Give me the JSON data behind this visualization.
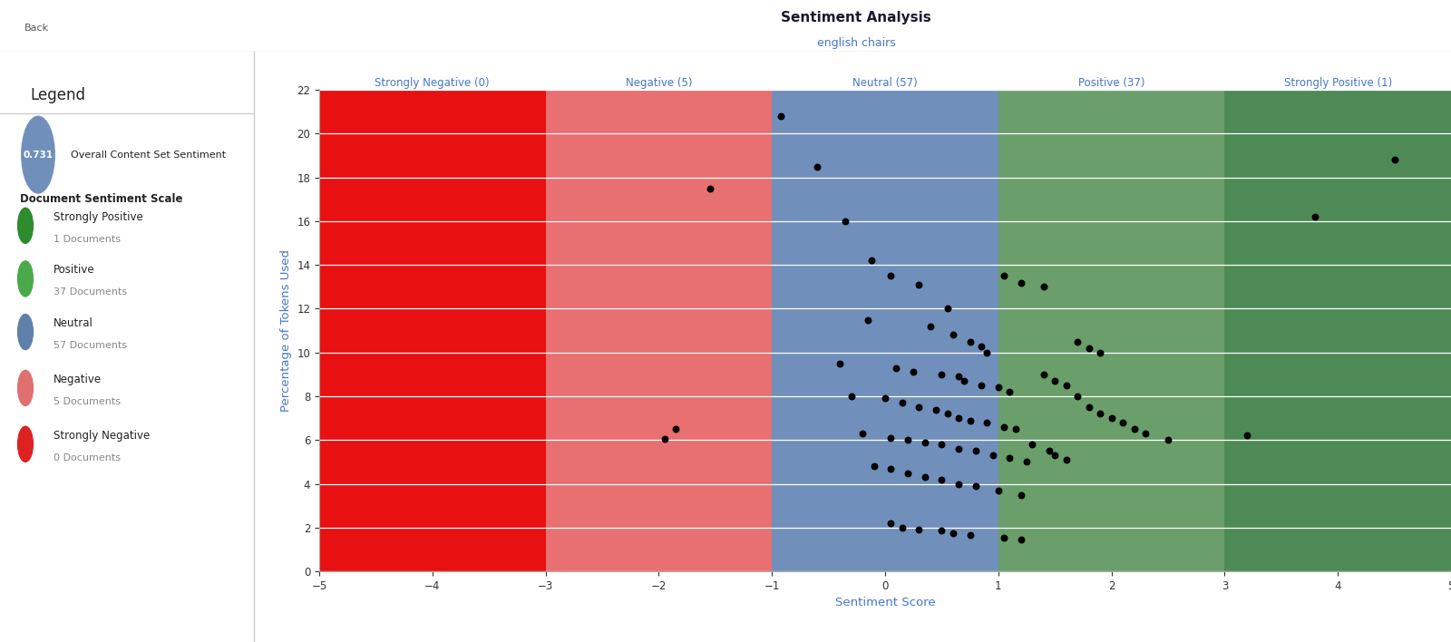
{
  "title": "Sentiment Analysis",
  "subtitle": "english chairs",
  "xlabel": "Sentiment Score",
  "ylabel": "Percentage of Tokens Used",
  "xlim": [
    -5,
    5
  ],
  "ylim": [
    0,
    22
  ],
  "xticks": [
    -5,
    -4,
    -3,
    -2,
    -1,
    0,
    1,
    2,
    3,
    4,
    5
  ],
  "yticks": [
    0,
    2,
    4,
    6,
    8,
    10,
    12,
    14,
    16,
    18,
    20,
    22
  ],
  "regions": [
    {
      "xmin": -5,
      "xmax": -3,
      "color": "#e81010",
      "label": "Strongly Negative (0)"
    },
    {
      "xmin": -3,
      "xmax": -1,
      "color": "#e87070",
      "label": "Negative (5)"
    },
    {
      "xmin": -1,
      "xmax": 1,
      "color": "#7090bb",
      "label": "Neutral (57)"
    },
    {
      "xmin": 1,
      "xmax": 3,
      "color": "#6a9e6a",
      "label": "Positive (37)"
    },
    {
      "xmin": 3,
      "xmax": 5,
      "color": "#4e8a55",
      "label": "Strongly Positive (1)"
    }
  ],
  "dots": [
    [
      -1.55,
      17.5
    ],
    [
      -1.85,
      6.5
    ],
    [
      -1.95,
      6.05
    ],
    [
      -0.92,
      20.8
    ],
    [
      -0.6,
      18.5
    ],
    [
      -0.35,
      16.0
    ],
    [
      -0.12,
      14.2
    ],
    [
      0.05,
      13.5
    ],
    [
      0.3,
      13.1
    ],
    [
      0.55,
      12.0
    ],
    [
      -0.15,
      11.5
    ],
    [
      0.4,
      11.2
    ],
    [
      0.6,
      10.8
    ],
    [
      0.75,
      10.5
    ],
    [
      0.85,
      10.3
    ],
    [
      0.9,
      10.0
    ],
    [
      -0.4,
      9.5
    ],
    [
      0.1,
      9.3
    ],
    [
      0.25,
      9.1
    ],
    [
      0.5,
      9.0
    ],
    [
      0.65,
      8.9
    ],
    [
      0.7,
      8.7
    ],
    [
      0.85,
      8.5
    ],
    [
      1.0,
      8.4
    ],
    [
      1.1,
      8.2
    ],
    [
      -0.3,
      8.0
    ],
    [
      0.0,
      7.9
    ],
    [
      0.15,
      7.7
    ],
    [
      0.3,
      7.5
    ],
    [
      0.45,
      7.4
    ],
    [
      0.55,
      7.2
    ],
    [
      0.65,
      7.0
    ],
    [
      0.75,
      6.9
    ],
    [
      0.9,
      6.8
    ],
    [
      1.05,
      6.6
    ],
    [
      1.15,
      6.5
    ],
    [
      -0.2,
      6.3
    ],
    [
      0.05,
      6.1
    ],
    [
      0.2,
      6.0
    ],
    [
      0.35,
      5.9
    ],
    [
      0.5,
      5.8
    ],
    [
      0.65,
      5.6
    ],
    [
      0.8,
      5.5
    ],
    [
      0.95,
      5.3
    ],
    [
      1.1,
      5.2
    ],
    [
      1.25,
      5.0
    ],
    [
      -0.1,
      4.8
    ],
    [
      0.05,
      4.7
    ],
    [
      0.2,
      4.5
    ],
    [
      0.35,
      4.3
    ],
    [
      0.5,
      4.2
    ],
    [
      0.65,
      4.0
    ],
    [
      0.8,
      3.9
    ],
    [
      1.0,
      3.7
    ],
    [
      1.2,
      3.5
    ],
    [
      0.05,
      2.2
    ],
    [
      0.15,
      2.0
    ],
    [
      0.3,
      1.9
    ],
    [
      0.5,
      1.85
    ],
    [
      0.6,
      1.75
    ],
    [
      0.75,
      1.65
    ],
    [
      1.05,
      1.55
    ],
    [
      1.2,
      1.45
    ],
    [
      1.3,
      5.8
    ],
    [
      1.45,
      5.5
    ],
    [
      1.5,
      5.3
    ],
    [
      1.6,
      5.1
    ],
    [
      1.7,
      8.0
    ],
    [
      1.8,
      7.5
    ],
    [
      1.9,
      7.2
    ],
    [
      2.0,
      7.0
    ],
    [
      2.1,
      6.8
    ],
    [
      2.2,
      6.5
    ],
    [
      2.3,
      6.3
    ],
    [
      2.5,
      6.0
    ],
    [
      1.4,
      9.0
    ],
    [
      1.5,
      8.7
    ],
    [
      1.6,
      8.5
    ],
    [
      1.7,
      10.5
    ],
    [
      1.8,
      10.2
    ],
    [
      1.9,
      10.0
    ],
    [
      1.05,
      13.5
    ],
    [
      1.2,
      13.2
    ],
    [
      1.4,
      13.0
    ],
    [
      3.2,
      6.2
    ],
    [
      3.8,
      16.2
    ],
    [
      4.5,
      18.8
    ]
  ],
  "legend_panel": {
    "overall_score": "0.731",
    "bubble_color": "#7090bb",
    "items": [
      {
        "label": "Strongly Positive",
        "sub": "1 Documents",
        "color": "#2e8b2e"
      },
      {
        "label": "Positive",
        "sub": "37 Documents",
        "color": "#4aaa4a"
      },
      {
        "label": "Neutral",
        "sub": "57 Documents",
        "color": "#6080aa"
      },
      {
        "label": "Negative",
        "sub": "5 Documents",
        "color": "#e07070"
      },
      {
        "label": "Strongly Negative",
        "sub": "0 Documents",
        "color": "#dd2222"
      }
    ]
  },
  "bg_color": "#ffffff",
  "toolbar_bg": "#f0f0f0",
  "plot_bg": "#f0f0f0",
  "title_color": "#1a1a2e",
  "subtitle_color": "#4477cc",
  "axis_label_color": "#4477cc",
  "tick_color": "#333333",
  "grid_color": "#cccccc",
  "region_label_color": "#4477cc",
  "divider_color": "#cccccc"
}
